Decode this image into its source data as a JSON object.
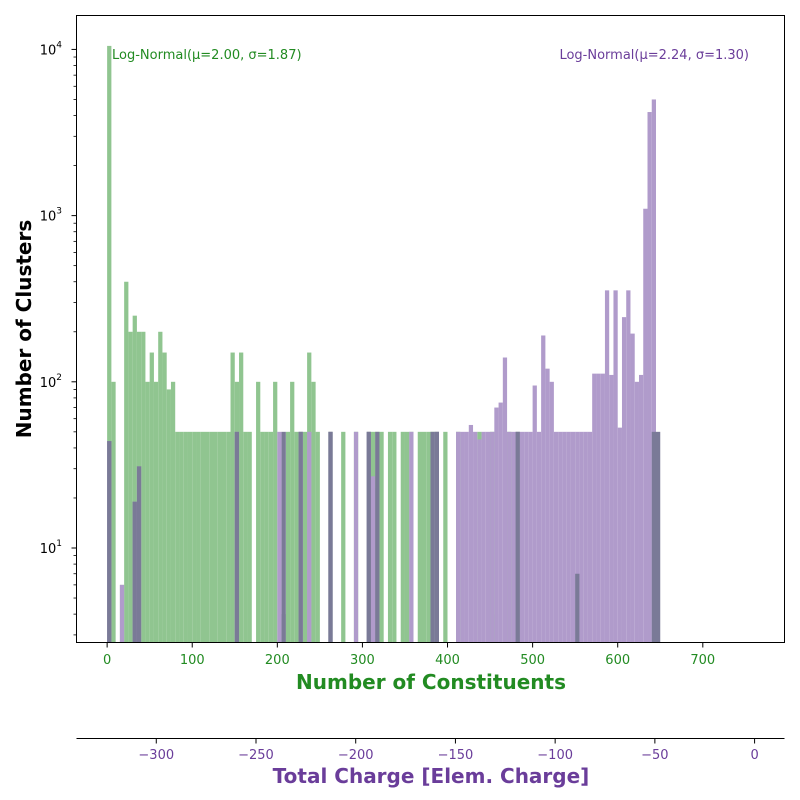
{
  "chart_data": {
    "type": "bar",
    "ylabel": "Number of Clusters",
    "yscale": "log",
    "ylim": [
      2.7,
      16000
    ],
    "y_ticks": [
      {
        "value": 10,
        "base": "10",
        "exp": "1"
      },
      {
        "value": 100,
        "base": "10",
        "exp": "2"
      },
      {
        "value": 1000,
        "base": "10",
        "exp": "3"
      },
      {
        "value": 10000,
        "base": "10",
        "exp": "4"
      }
    ],
    "grid": false,
    "x_axis_top": {
      "label": "Number of Constituents",
      "color": "#228b22",
      "range": [
        -36,
        796
      ],
      "ticks": [
        0,
        100,
        200,
        300,
        400,
        500,
        600,
        700
      ],
      "tick_labels": [
        "0",
        "100",
        "200",
        "300",
        "400",
        "500",
        "600",
        "700"
      ]
    },
    "x_axis_bottom": {
      "label": "Total Charge [Elem. Charge]",
      "color": "#6a3d9a",
      "range": [
        -340,
        15
      ],
      "ticks": [
        -300,
        -250,
        -200,
        -150,
        -100,
        -50,
        0
      ],
      "tick_labels": [
        "−300",
        "−250",
        "−200",
        "−150",
        "−100",
        "−50",
        "0"
      ]
    },
    "bin_width": 5,
    "series": [
      {
        "color": "#90c590",
        "annotation": "Log-Normal(μ=2.00, σ=1.87)",
        "annotation_color": "#228b22",
        "annotation_anchor": "top-left",
        "bins": [
          [
            0,
            10500
          ],
          [
            5,
            100
          ],
          [
            15,
            6
          ],
          [
            20,
            400
          ],
          [
            25,
            200
          ],
          [
            30,
            250
          ],
          [
            35,
            200
          ],
          [
            40,
            200
          ],
          [
            45,
            100
          ],
          [
            50,
            150
          ],
          [
            55,
            100
          ],
          [
            60,
            200
          ],
          [
            65,
            150
          ],
          [
            70,
            90
          ],
          [
            75,
            100
          ],
          [
            80,
            50
          ],
          [
            85,
            50
          ],
          [
            90,
            50
          ],
          [
            95,
            50
          ],
          [
            100,
            50
          ],
          [
            105,
            50
          ],
          [
            110,
            50
          ],
          [
            115,
            50
          ],
          [
            120,
            50
          ],
          [
            125,
            50
          ],
          [
            130,
            50
          ],
          [
            135,
            50
          ],
          [
            140,
            50
          ],
          [
            145,
            150
          ],
          [
            150,
            100
          ],
          [
            155,
            150
          ],
          [
            160,
            50
          ],
          [
            165,
            50
          ],
          [
            175,
            100
          ],
          [
            180,
            50
          ],
          [
            185,
            50
          ],
          [
            190,
            50
          ],
          [
            195,
            100
          ],
          [
            205,
            4
          ],
          [
            210,
            50
          ],
          [
            215,
            100
          ],
          [
            220,
            50
          ],
          [
            225,
            50
          ],
          [
            230,
            50
          ],
          [
            235,
            150
          ],
          [
            240,
            100
          ],
          [
            245,
            50
          ],
          [
            260,
            50
          ],
          [
            275,
            50
          ],
          [
            290,
            50
          ],
          [
            305,
            50
          ],
          [
            310,
            50
          ],
          [
            315,
            50
          ],
          [
            320,
            50
          ],
          [
            330,
            50
          ],
          [
            335,
            50
          ],
          [
            345,
            50
          ],
          [
            350,
            50
          ],
          [
            355,
            50
          ],
          [
            365,
            50
          ],
          [
            370,
            50
          ],
          [
            375,
            50
          ],
          [
            380,
            50
          ],
          [
            385,
            50
          ],
          [
            395,
            50
          ],
          [
            410,
            50
          ],
          [
            435,
            50
          ],
          [
            450,
            50
          ],
          [
            455,
            4
          ],
          [
            470,
            50
          ],
          [
            480,
            50
          ]
        ]
      },
      {
        "color": "#b09bcb",
        "annotation": "Log-Normal(μ=2.24, σ=1.30)",
        "annotation_color": "#6a3d9a",
        "annotation_anchor": "top-right",
        "bins": [
          [
            0,
            44
          ],
          [
            15,
            6
          ],
          [
            30,
            19
          ],
          [
            35,
            31
          ],
          [
            150,
            50
          ],
          [
            200,
            50
          ],
          [
            225,
            50
          ],
          [
            235,
            50
          ],
          [
            260,
            50
          ],
          [
            290,
            50
          ],
          [
            305,
            50
          ],
          [
            310,
            27
          ],
          [
            315,
            23
          ],
          [
            355,
            50
          ],
          [
            385,
            50
          ],
          [
            410,
            50
          ],
          [
            415,
            50
          ],
          [
            420,
            50
          ],
          [
            425,
            55
          ],
          [
            430,
            50
          ],
          [
            435,
            45
          ],
          [
            440,
            50
          ],
          [
            445,
            50
          ],
          [
            450,
            50
          ],
          [
            455,
            70
          ],
          [
            460,
            75
          ],
          [
            465,
            140
          ],
          [
            470,
            50
          ],
          [
            475,
            50
          ],
          [
            480,
            50
          ],
          [
            485,
            50
          ],
          [
            490,
            50
          ],
          [
            495,
            50
          ],
          [
            500,
            95
          ],
          [
            505,
            50
          ],
          [
            510,
            190
          ],
          [
            515,
            120
          ],
          [
            520,
            100
          ],
          [
            525,
            50
          ],
          [
            530,
            50
          ],
          [
            535,
            50
          ],
          [
            540,
            50
          ],
          [
            545,
            50
          ],
          [
            550,
            50
          ],
          [
            555,
            50
          ],
          [
            560,
            50
          ],
          [
            565,
            50
          ],
          [
            570,
            112
          ],
          [
            575,
            112
          ],
          [
            580,
            112
          ],
          [
            585,
            355
          ],
          [
            590,
            110
          ],
          [
            595,
            355
          ],
          [
            600,
            53
          ],
          [
            605,
            245
          ],
          [
            610,
            355
          ],
          [
            615,
            195
          ],
          [
            620,
            100
          ],
          [
            625,
            110
          ],
          [
            630,
            1100
          ],
          [
            635,
            4200
          ],
          [
            640,
            5000
          ]
        ]
      },
      {
        "color": "#7a7a97",
        "bins": [
          [
            0,
            44
          ],
          [
            30,
            19
          ],
          [
            35,
            31
          ],
          [
            150,
            50
          ],
          [
            205,
            50
          ],
          [
            225,
            50
          ],
          [
            260,
            50
          ],
          [
            305,
            50
          ],
          [
            315,
            50
          ],
          [
            380,
            50
          ],
          [
            385,
            50
          ],
          [
            480,
            50
          ],
          [
            550,
            7
          ],
          [
            640,
            50
          ],
          [
            645,
            50
          ]
        ]
      }
    ]
  }
}
